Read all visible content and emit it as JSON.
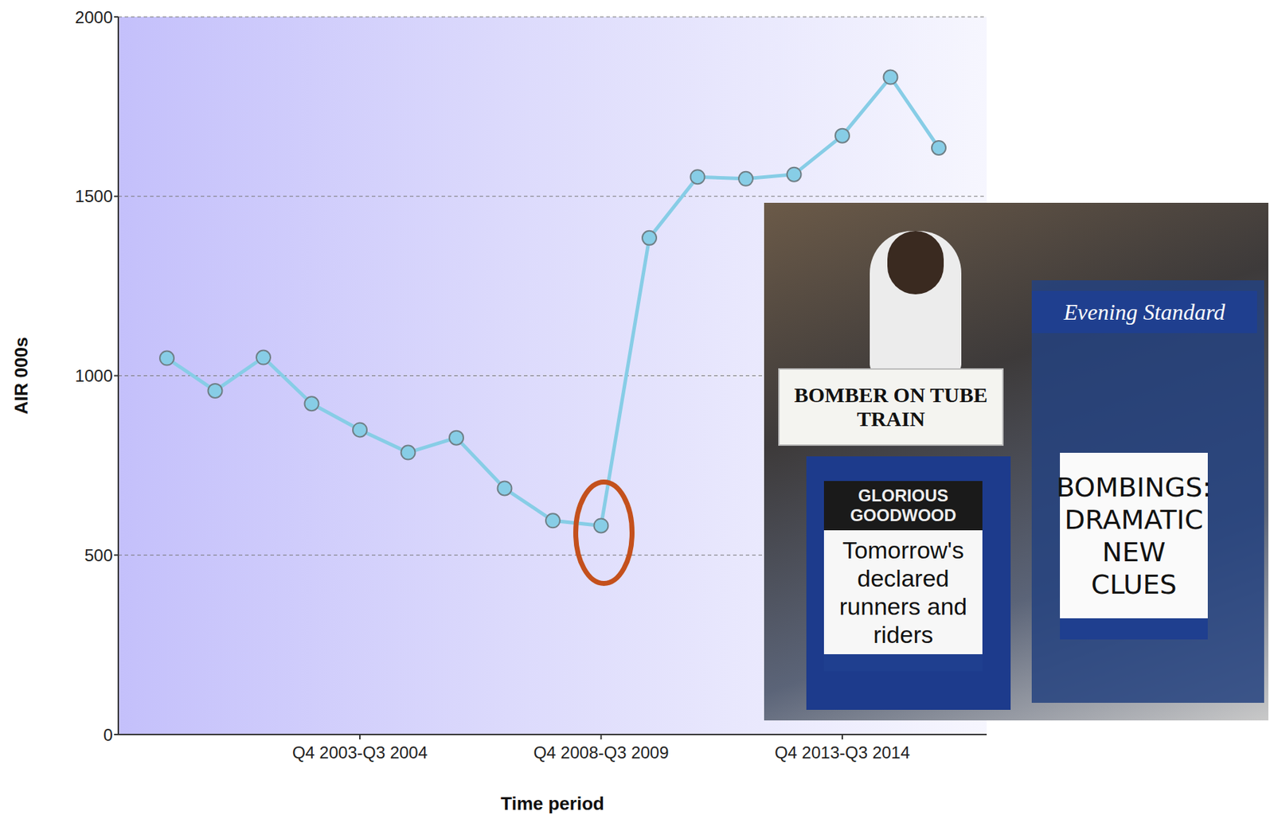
{
  "chart_data": {
    "type": "line",
    "categories": [
      null,
      null,
      null,
      null,
      "Q4 2003-Q3 2004",
      null,
      null,
      null,
      null,
      "Q4 2008-Q3 2009",
      null,
      null,
      null,
      null,
      "Q4 2013-Q3 2014",
      null,
      null
    ],
    "values": [
      1049,
      958,
      1051,
      922,
      849,
      786,
      827,
      686,
      596,
      582,
      1384,
      1554,
      1549,
      1561,
      1669,
      1832,
      1635
    ],
    "color": "#87cde6",
    "xlabel": "Time period",
    "ylabel": "AIR 000s",
    "ylim": [
      0,
      2000
    ],
    "yticks": [
      0,
      500,
      1000,
      1500,
      2000
    ],
    "grid": true,
    "marker": "circle",
    "annotations": [
      "BOMBER ON TUBE TRAIN",
      "Evening Standard",
      "GLORIOUS GOODWOOD",
      "Tomorrow's declared runners and riders",
      "BOMBINGS: DRAMATIC NEW CLUES"
    ]
  }
}
